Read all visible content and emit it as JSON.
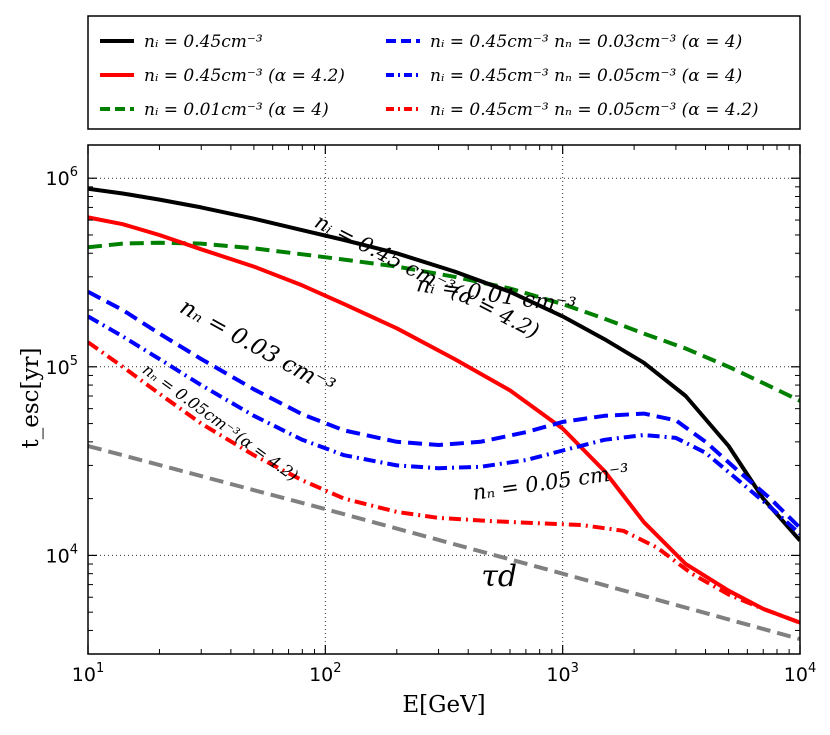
{
  "chart_data": {
    "type": "line",
    "title": "",
    "xlabel": "E[GeV]",
    "ylabel": "t_esc[yr]",
    "xscale": "log",
    "yscale": "log",
    "xlim": [
      10,
      10000
    ],
    "ylim": [
      3000,
      1500000
    ],
    "grid": true,
    "legend_position": "top",
    "x_ticks": [
      {
        "value": 10,
        "base": "10",
        "exp": "1"
      },
      {
        "value": 100,
        "base": "10",
        "exp": "2"
      },
      {
        "value": 1000,
        "base": "10",
        "exp": "3"
      },
      {
        "value": 10000,
        "base": "10",
        "exp": "4"
      }
    ],
    "y_ticks": [
      {
        "value": 10000,
        "base": "10",
        "exp": "4"
      },
      {
        "value": 100000,
        "base": "10",
        "exp": "5"
      },
      {
        "value": 1000000,
        "base": "10",
        "exp": "6"
      }
    ],
    "series": [
      {
        "name": "n_i = 0.45cm^-3",
        "legend": "nᵢ = 0.45cm⁻³",
        "color": "#000000",
        "style": "solid",
        "x": [
          10,
          14,
          20,
          30,
          50,
          80,
          120,
          200,
          350,
          600,
          1000,
          1500,
          2200,
          3300,
          5000,
          7000,
          10000
        ],
        "y": [
          880000,
          830000,
          770000,
          700000,
          610000,
          530000,
          470000,
          400000,
          320000,
          250000,
          185000,
          140000,
          105000,
          70000,
          38000,
          20000,
          12000
        ]
      },
      {
        "name": "n_i = 0.45cm^-3 (alpha=4.2)",
        "legend": "nᵢ = 0.45cm⁻³ (α = 4.2)",
        "color": "#ff0000",
        "style": "solid",
        "x": [
          10,
          14,
          20,
          30,
          50,
          80,
          120,
          200,
          350,
          600,
          1000,
          1500,
          2200,
          3300,
          5000,
          7000,
          10000
        ],
        "y": [
          620000,
          570000,
          500000,
          420000,
          340000,
          270000,
          215000,
          160000,
          110000,
          75000,
          47000,
          28000,
          15000,
          9000,
          6500,
          5200,
          4400
        ]
      },
      {
        "name": "n_i = 0.01cm^-3 (alpha=4)",
        "legend": "nᵢ = 0.01cm⁻³ (α = 4)",
        "color": "#008000",
        "style": "dashed",
        "x": [
          10,
          14,
          20,
          30,
          50,
          80,
          120,
          200,
          350,
          600,
          1000,
          1500,
          2200,
          3300,
          5000,
          7000,
          10000
        ],
        "y": [
          430000,
          450000,
          455000,
          450000,
          425000,
          395000,
          370000,
          340000,
          300000,
          260000,
          215000,
          180000,
          150000,
          125000,
          100000,
          82000,
          66000
        ]
      },
      {
        "name": "n_i = 0.45cm^-3 n_n = 0.03cm^-3 (alpha=4)",
        "legend": "nᵢ = 0.45cm⁻³ nₙ = 0.03cm⁻³ (α = 4)",
        "color": "#0000ff",
        "style": "dashed",
        "x": [
          10,
          14,
          20,
          30,
          50,
          80,
          120,
          200,
          300,
          450,
          700,
          1000,
          1500,
          2200,
          3000,
          4000,
          5500,
          7500,
          10000
        ],
        "y": [
          250000,
          200000,
          150000,
          110000,
          76000,
          56000,
          46000,
          40000,
          38500,
          40000,
          45000,
          51000,
          55000,
          56500,
          52000,
          40000,
          28000,
          20000,
          14000
        ]
      },
      {
        "name": "n_i = 0.45cm^-3 n_n = 0.05cm^-3 (alpha=4)",
        "legend": "nᵢ = 0.45cm⁻³ nₙ = 0.05cm⁻³ (α = 4)",
        "color": "#0000ff",
        "style": "dashdot",
        "x": [
          10,
          14,
          20,
          30,
          50,
          80,
          120,
          200,
          300,
          450,
          700,
          1000,
          1500,
          2200,
          3000,
          4000,
          5500,
          7500,
          10000
        ],
        "y": [
          185000,
          145000,
          110000,
          80000,
          55000,
          41000,
          34000,
          30000,
          29000,
          29500,
          32000,
          36000,
          41000,
          43500,
          42000,
          35000,
          25000,
          18000,
          13000
        ]
      },
      {
        "name": "n_i = 0.45cm^-3 n_n = 0.05cm^-3 (alpha=4.2)",
        "legend": "nᵢ = 0.45cm⁻³ nₙ = 0.05cm⁻³ (α = 4.2)",
        "color": "#ff0000",
        "style": "dashdot",
        "x": [
          10,
          14,
          20,
          30,
          50,
          80,
          120,
          200,
          300,
          500,
          800,
          1200,
          1800,
          2500,
          3500,
          5000,
          7000,
          10000
        ],
        "y": [
          135000,
          100000,
          72000,
          50000,
          34000,
          25000,
          20000,
          17000,
          15800,
          15200,
          14800,
          14500,
          13500,
          11000,
          8000,
          6200,
          5200,
          4400
        ]
      },
      {
        "name": "tau_d",
        "legend": "",
        "color": "#808080",
        "style": "dashed",
        "x": [
          10,
          100,
          1000,
          10000
        ],
        "y": [
          38000,
          17600,
          8000,
          3600
        ]
      }
    ],
    "annotations": [
      {
        "text": "nᵢ = 0.45 cm⁻³(α = 4.2)",
        "x": 260,
        "y": 280000,
        "angle": 27,
        "size": 21
      },
      {
        "text": "nᵢ = 0.01 cm⁻³",
        "x": 520,
        "y": 220000,
        "angle": 8,
        "size": 22
      },
      {
        "text": "nₙ = 0.03 cm⁻³",
        "x": 50,
        "y": 118000,
        "angle": 29,
        "size": 23
      },
      {
        "text": "nₙ = 0.05cm⁻³(α = 4.2)",
        "x": 35,
        "y": 48000,
        "angle": 36,
        "size": 16
      },
      {
        "text": "nₙ = 0.05 cm⁻³",
        "x": 900,
        "y": 22500,
        "angle": -8,
        "size": 21
      },
      {
        "text": "τd",
        "x": 540,
        "y": 6900,
        "angle": 0,
        "size": 30
      }
    ]
  }
}
